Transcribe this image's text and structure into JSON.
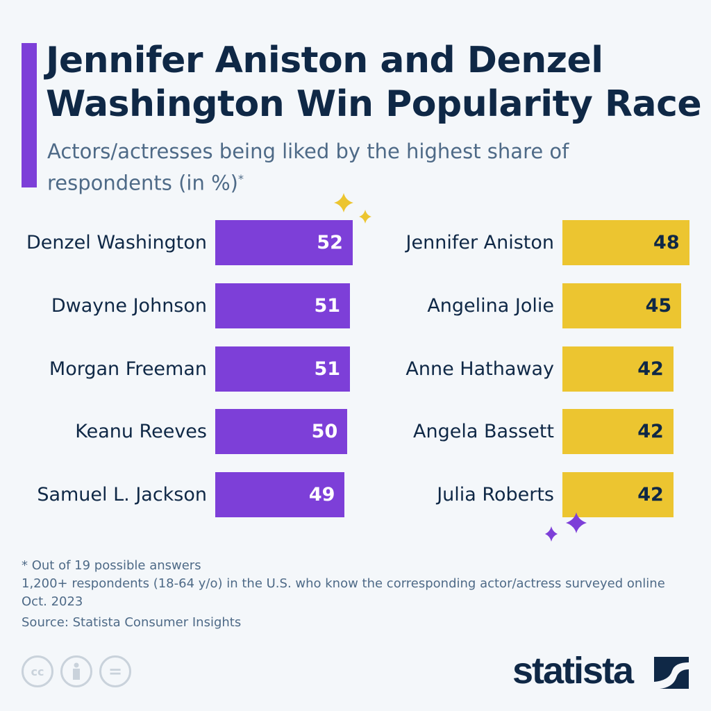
{
  "title": "Jennifer Aniston and Denzel Washington Win Popularity Race",
  "subtitle": "Actors/actresses being liked by the highest share of respondents (in %)",
  "subtitle_mark": "*",
  "chart_data": {
    "type": "bar",
    "orientation": "horizontal",
    "unit": "%",
    "series": [
      {
        "categories": [
          "Denzel Washington",
          "Dwayne Johnson",
          "Morgan Freeman",
          "Keanu Reeves",
          "Samuel L. Jackson"
        ],
        "values": [
          52,
          51,
          51,
          50,
          49
        ],
        "color": "#7d3fd8"
      },
      {
        "categories": [
          "Jennifer Aniston",
          "Angelina Jolie",
          "Anne Hathaway",
          "Angela Bassett",
          "Julia Roberts"
        ],
        "values": [
          48,
          45,
          42,
          42,
          42
        ],
        "color": "#ecc530"
      }
    ]
  },
  "notes": [
    "* Out of 19 possible answers",
    "1,200+ respondents (18-64 y/o) in the U.S. who know the corresponding actor/actress surveyed online Oct. 2023"
  ],
  "source": "Source: Statista Consumer Insights",
  "license_icons": [
    "cc-icon",
    "attribution-icon",
    "no-derivatives-icon"
  ],
  "license_labels": [
    "cc",
    "",
    "="
  ],
  "logo": "statista"
}
